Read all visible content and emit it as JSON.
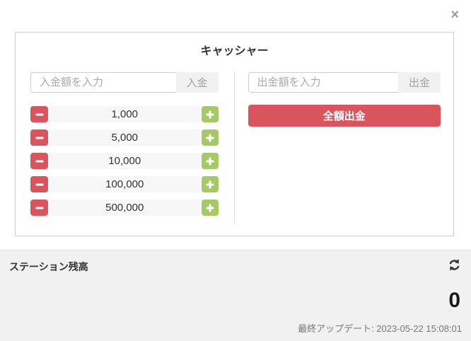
{
  "overlay": {
    "close_icon": "×"
  },
  "modal": {
    "title": "キャッシャー",
    "deposit": {
      "input_placeholder": "入金額を入力",
      "input_value": "",
      "button_label": "入金",
      "quick_amounts": [
        "1,000",
        "5,000",
        "10,000",
        "100,000",
        "500,000"
      ]
    },
    "withdraw": {
      "input_placeholder": "出金額を入力",
      "input_value": "",
      "button_label": "出金",
      "withdraw_all_label": "全額出金"
    }
  },
  "footer": {
    "balance_label": "ステーション残高",
    "balance_value": "0",
    "last_update": "最終アップデート: 2023-05-22 15:08:01"
  },
  "colors": {
    "danger": "#d9545c",
    "success": "#a5c964",
    "footer_bg": "#f1f1f1"
  }
}
